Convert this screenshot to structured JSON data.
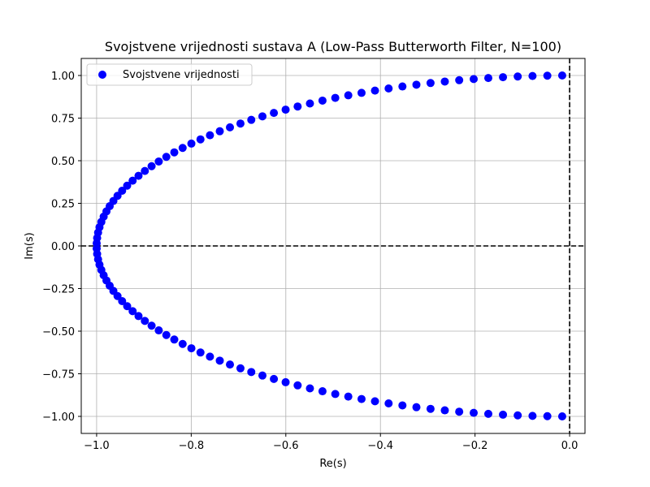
{
  "chart_data": {
    "type": "scatter",
    "title": "Svojstvene vrijednosti sustava A (Low-Pass Butterworth Filter, N=100)",
    "xlabel": "Re(s)",
    "ylabel": "Im(s)",
    "xlim": [
      -1.0325,
      0.0325
    ],
    "ylim": [
      -1.1,
      1.1
    ],
    "x_ticks": [
      -1.0,
      -0.8,
      -0.6,
      -0.4,
      -0.2,
      0.0
    ],
    "x_tick_labels": [
      "−1.0",
      "−0.8",
      "−0.6",
      "−0.4",
      "−0.2",
      "0.0"
    ],
    "y_ticks": [
      1.0,
      0.75,
      0.5,
      0.25,
      0.0,
      -0.25,
      -0.5,
      -0.75,
      -1.0
    ],
    "y_tick_labels": [
      "1.00",
      "0.75",
      "0.50",
      "0.25",
      "0.00",
      "−0.25",
      "−0.50",
      "−0.75",
      "−1.00"
    ],
    "grid": true,
    "legend_position": "top-left",
    "reference_lines": [
      {
        "orientation": "horizontal",
        "value": 0,
        "style": "dashed",
        "color": "#000000"
      },
      {
        "orientation": "vertical",
        "value": 0,
        "style": "dashed",
        "color": "#000000"
      }
    ],
    "series": [
      {
        "name": "Svojstvene vrijednosti",
        "color": "#0000ff",
        "marker": "circle",
        "generator": "butterworth_poles",
        "n": 100
      }
    ]
  }
}
